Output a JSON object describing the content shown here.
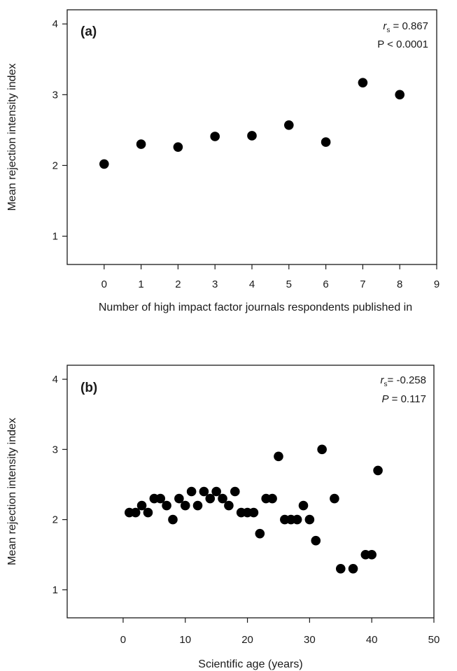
{
  "chart_data": [
    {
      "type": "scatter",
      "panel_label": "(a)",
      "xlabel": "Number of high impact factor journals respondents published in",
      "ylabel": "Mean rejection intensity index",
      "xlim": [
        -1,
        9
      ],
      "ylim": [
        0.6,
        4.2
      ],
      "xticks": [
        "0",
        "1",
        "2",
        "3",
        "4",
        "5",
        "6",
        "7",
        "8",
        "9"
      ],
      "yticks": [
        "1",
        "2",
        "3",
        "4"
      ],
      "stat_symbol": "r",
      "stat_sub": "s",
      "stat_value": " = 0.867",
      "p_symbol": "P",
      "p_value": " < 0.0001",
      "p_italic": false,
      "points": [
        {
          "x": 0,
          "y": 2.02
        },
        {
          "x": 1,
          "y": 2.3
        },
        {
          "x": 2,
          "y": 2.26
        },
        {
          "x": 3,
          "y": 2.41
        },
        {
          "x": 4,
          "y": 2.42
        },
        {
          "x": 5,
          "y": 2.57
        },
        {
          "x": 6,
          "y": 2.33
        },
        {
          "x": 7,
          "y": 3.17
        },
        {
          "x": 8,
          "y": 3.0
        }
      ],
      "marker_color": "#000000",
      "grid": false,
      "legend": "none"
    },
    {
      "type": "scatter",
      "panel_label": "(b)",
      "xlabel": "Scientific age (years)",
      "ylabel": "Mean rejection intensity index",
      "xlim": [
        -9,
        50
      ],
      "ylim": [
        0.6,
        4.2
      ],
      "xticks": [
        "0",
        "10",
        "20",
        "30",
        "40",
        "50"
      ],
      "yticks": [
        "1",
        "2",
        "3",
        "4"
      ],
      "stat_symbol": "r",
      "stat_sub": "s",
      "stat_value": "= -0.258",
      "p_symbol": "P",
      "p_value": " = 0.117",
      "p_italic": true,
      "points": [
        {
          "x": 1,
          "y": 2.1
        },
        {
          "x": 2,
          "y": 2.1
        },
        {
          "x": 3,
          "y": 2.2
        },
        {
          "x": 4,
          "y": 2.1
        },
        {
          "x": 5,
          "y": 2.3
        },
        {
          "x": 6,
          "y": 2.3
        },
        {
          "x": 7,
          "y": 2.2
        },
        {
          "x": 8,
          "y": 2.0
        },
        {
          "x": 9,
          "y": 2.3
        },
        {
          "x": 10,
          "y": 2.2
        },
        {
          "x": 11,
          "y": 2.4
        },
        {
          "x": 12,
          "y": 2.2
        },
        {
          "x": 13,
          "y": 2.4
        },
        {
          "x": 14,
          "y": 2.3
        },
        {
          "x": 15,
          "y": 2.4
        },
        {
          "x": 16,
          "y": 2.3
        },
        {
          "x": 17,
          "y": 2.2
        },
        {
          "x": 18,
          "y": 2.4
        },
        {
          "x": 19,
          "y": 2.1
        },
        {
          "x": 20,
          "y": 2.1
        },
        {
          "x": 21,
          "y": 2.1
        },
        {
          "x": 22,
          "y": 1.8
        },
        {
          "x": 23,
          "y": 2.3
        },
        {
          "x": 24,
          "y": 2.3
        },
        {
          "x": 25,
          "y": 2.9
        },
        {
          "x": 26,
          "y": 2.0
        },
        {
          "x": 27,
          "y": 2.0
        },
        {
          "x": 28,
          "y": 2.0
        },
        {
          "x": 29,
          "y": 2.2
        },
        {
          "x": 30,
          "y": 2.0
        },
        {
          "x": 31,
          "y": 1.7
        },
        {
          "x": 32,
          "y": 3.0
        },
        {
          "x": 34,
          "y": 2.3
        },
        {
          "x": 35,
          "y": 1.3
        },
        {
          "x": 37,
          "y": 1.3
        },
        {
          "x": 39,
          "y": 1.5
        },
        {
          "x": 40,
          "y": 1.5
        },
        {
          "x": 41,
          "y": 2.7
        }
      ],
      "marker_color": "#000000",
      "grid": false,
      "legend": "none"
    }
  ]
}
